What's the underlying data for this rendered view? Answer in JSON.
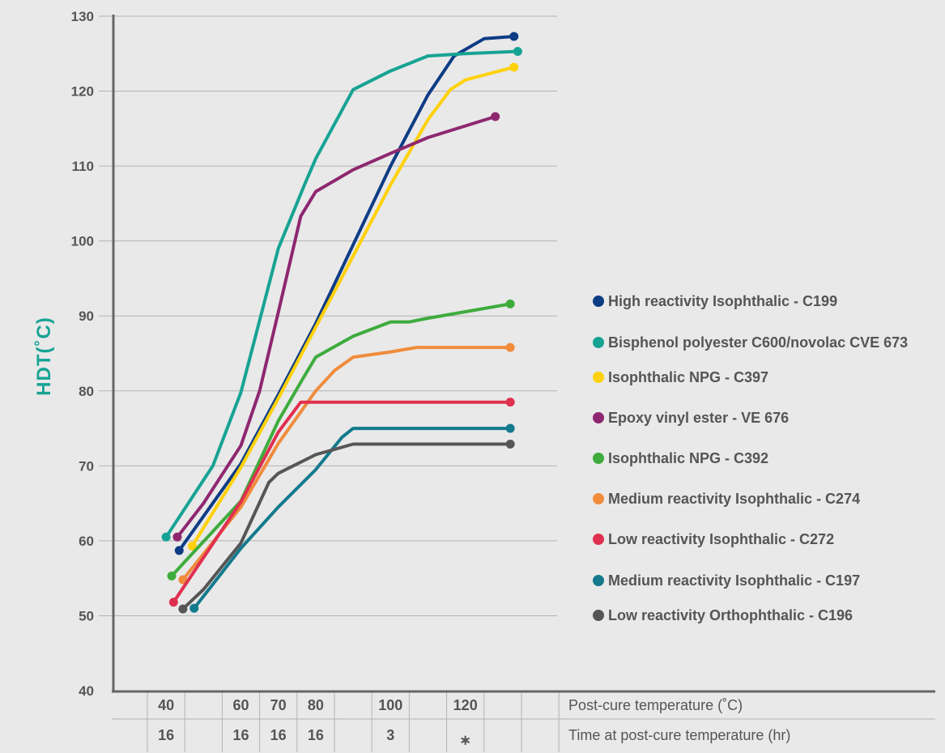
{
  "chart_data": {
    "type": "line",
    "xlabel": "",
    "ylabel": "HDT(˚C)",
    "ylim": [
      40,
      130
    ],
    "yticks": [
      "130",
      "120",
      "110",
      "100",
      "90",
      "80",
      "70",
      "60",
      "50",
      "40"
    ],
    "x_unit": "post-cure step",
    "grid": "horizontal",
    "legend_position": "right",
    "table": {
      "rows": [
        {
          "label": "Post-cure temperature (˚C)",
          "cells": [
            "40",
            "",
            "60",
            "70",
            "80",
            "",
            "100",
            "",
            "120",
            "",
            ""
          ]
        },
        {
          "label": "Time at post-cure temperature (hr)",
          "cells": [
            "16",
            "",
            "16",
            "16",
            "16",
            "",
            "3",
            "",
            "∗",
            "",
            ""
          ]
        }
      ]
    },
    "series": [
      {
        "name": "High reactivity Isophthalic - C199",
        "color": "#0d3c85",
        "points": [
          [
            0.35,
            58.7
          ],
          [
            2.0,
            70.3
          ],
          [
            3.0,
            79.5
          ],
          [
            4.0,
            89.0
          ],
          [
            5.0,
            99.5
          ],
          [
            6.0,
            110.0
          ],
          [
            7.0,
            119.5
          ],
          [
            7.7,
            124.7
          ],
          [
            8.5,
            127.0
          ],
          [
            9.3,
            127.3
          ]
        ]
      },
      {
        "name": "Bisphenol polyester C600/novolac CVE 673",
        "color": "#17a394",
        "points": [
          [
            0.0,
            60.5
          ],
          [
            1.25,
            70.0
          ],
          [
            2.0,
            79.8
          ],
          [
            3.0,
            99.0
          ],
          [
            3.7,
            107.5
          ],
          [
            4.0,
            111.0
          ],
          [
            5.0,
            120.2
          ],
          [
            6.0,
            122.7
          ],
          [
            7.0,
            124.7
          ],
          [
            8.0,
            125.0
          ],
          [
            9.4,
            125.3
          ]
        ]
      },
      {
        "name": "Isophthalic NPG - C397",
        "color": "#fed10a",
        "points": [
          [
            0.7,
            59.3
          ],
          [
            2.0,
            69.8
          ],
          [
            3.0,
            79.0
          ],
          [
            4.0,
            88.5
          ],
          [
            5.0,
            98.0
          ],
          [
            6.0,
            107.5
          ],
          [
            7.0,
            116.2
          ],
          [
            7.6,
            120.2
          ],
          [
            8.0,
            121.5
          ],
          [
            9.3,
            123.2
          ]
        ]
      },
      {
        "name": "Epoxy vinyl ester - VE 676",
        "color": "#8e2770",
        "points": [
          [
            0.3,
            60.5
          ],
          [
            1.0,
            65.0
          ],
          [
            2.0,
            72.7
          ],
          [
            2.5,
            80.0
          ],
          [
            3.0,
            90.5
          ],
          [
            3.6,
            103.3
          ],
          [
            4.0,
            106.6
          ],
          [
            5.0,
            109.5
          ],
          [
            6.0,
            111.7
          ],
          [
            7.0,
            113.8
          ],
          [
            8.8,
            116.6
          ]
        ]
      },
      {
        "name": "Isophthalic NPG - C392",
        "color": "#3eac3d",
        "points": [
          [
            0.15,
            55.3
          ],
          [
            2.0,
            65.3
          ],
          [
            3.0,
            76.0
          ],
          [
            3.7,
            82.0
          ],
          [
            4.0,
            84.5
          ],
          [
            5.0,
            87.3
          ],
          [
            6.0,
            89.2
          ],
          [
            6.5,
            89.2
          ],
          [
            7.0,
            89.7
          ],
          [
            9.2,
            91.6
          ]
        ]
      },
      {
        "name": "Medium reactivity Isophthalic - C274",
        "color": "#f08c3c",
        "points": [
          [
            0.45,
            54.8
          ],
          [
            2.0,
            64.5
          ],
          [
            3.0,
            73.0
          ],
          [
            4.0,
            80.0
          ],
          [
            4.5,
            82.7
          ],
          [
            5.0,
            84.5
          ],
          [
            6.0,
            85.2
          ],
          [
            6.7,
            85.8
          ],
          [
            9.2,
            85.8
          ]
        ]
      },
      {
        "name": "Low reactivity Isophthalic - C272",
        "color": "#e0304f",
        "points": [
          [
            0.2,
            51.8
          ],
          [
            2.0,
            65.2
          ],
          [
            3.0,
            74.5
          ],
          [
            3.6,
            78.5
          ],
          [
            9.2,
            78.5
          ]
        ]
      },
      {
        "name": "Medium reactivity Isophthalic - C197",
        "color": "#137a8c",
        "points": [
          [
            0.75,
            51.0
          ],
          [
            2.0,
            59.0
          ],
          [
            3.0,
            64.5
          ],
          [
            4.0,
            69.5
          ],
          [
            4.7,
            73.8
          ],
          [
            5.0,
            75.0
          ],
          [
            9.2,
            75.0
          ]
        ]
      },
      {
        "name": "Low reactivity Orthophthalic - C196",
        "color": "#565656",
        "points": [
          [
            0.45,
            50.9
          ],
          [
            1.0,
            53.5
          ],
          [
            2.0,
            59.7
          ],
          [
            2.75,
            67.8
          ],
          [
            3.0,
            69.0
          ],
          [
            4.0,
            71.5
          ],
          [
            5.0,
            72.9
          ],
          [
            9.2,
            72.9
          ]
        ]
      }
    ]
  }
}
